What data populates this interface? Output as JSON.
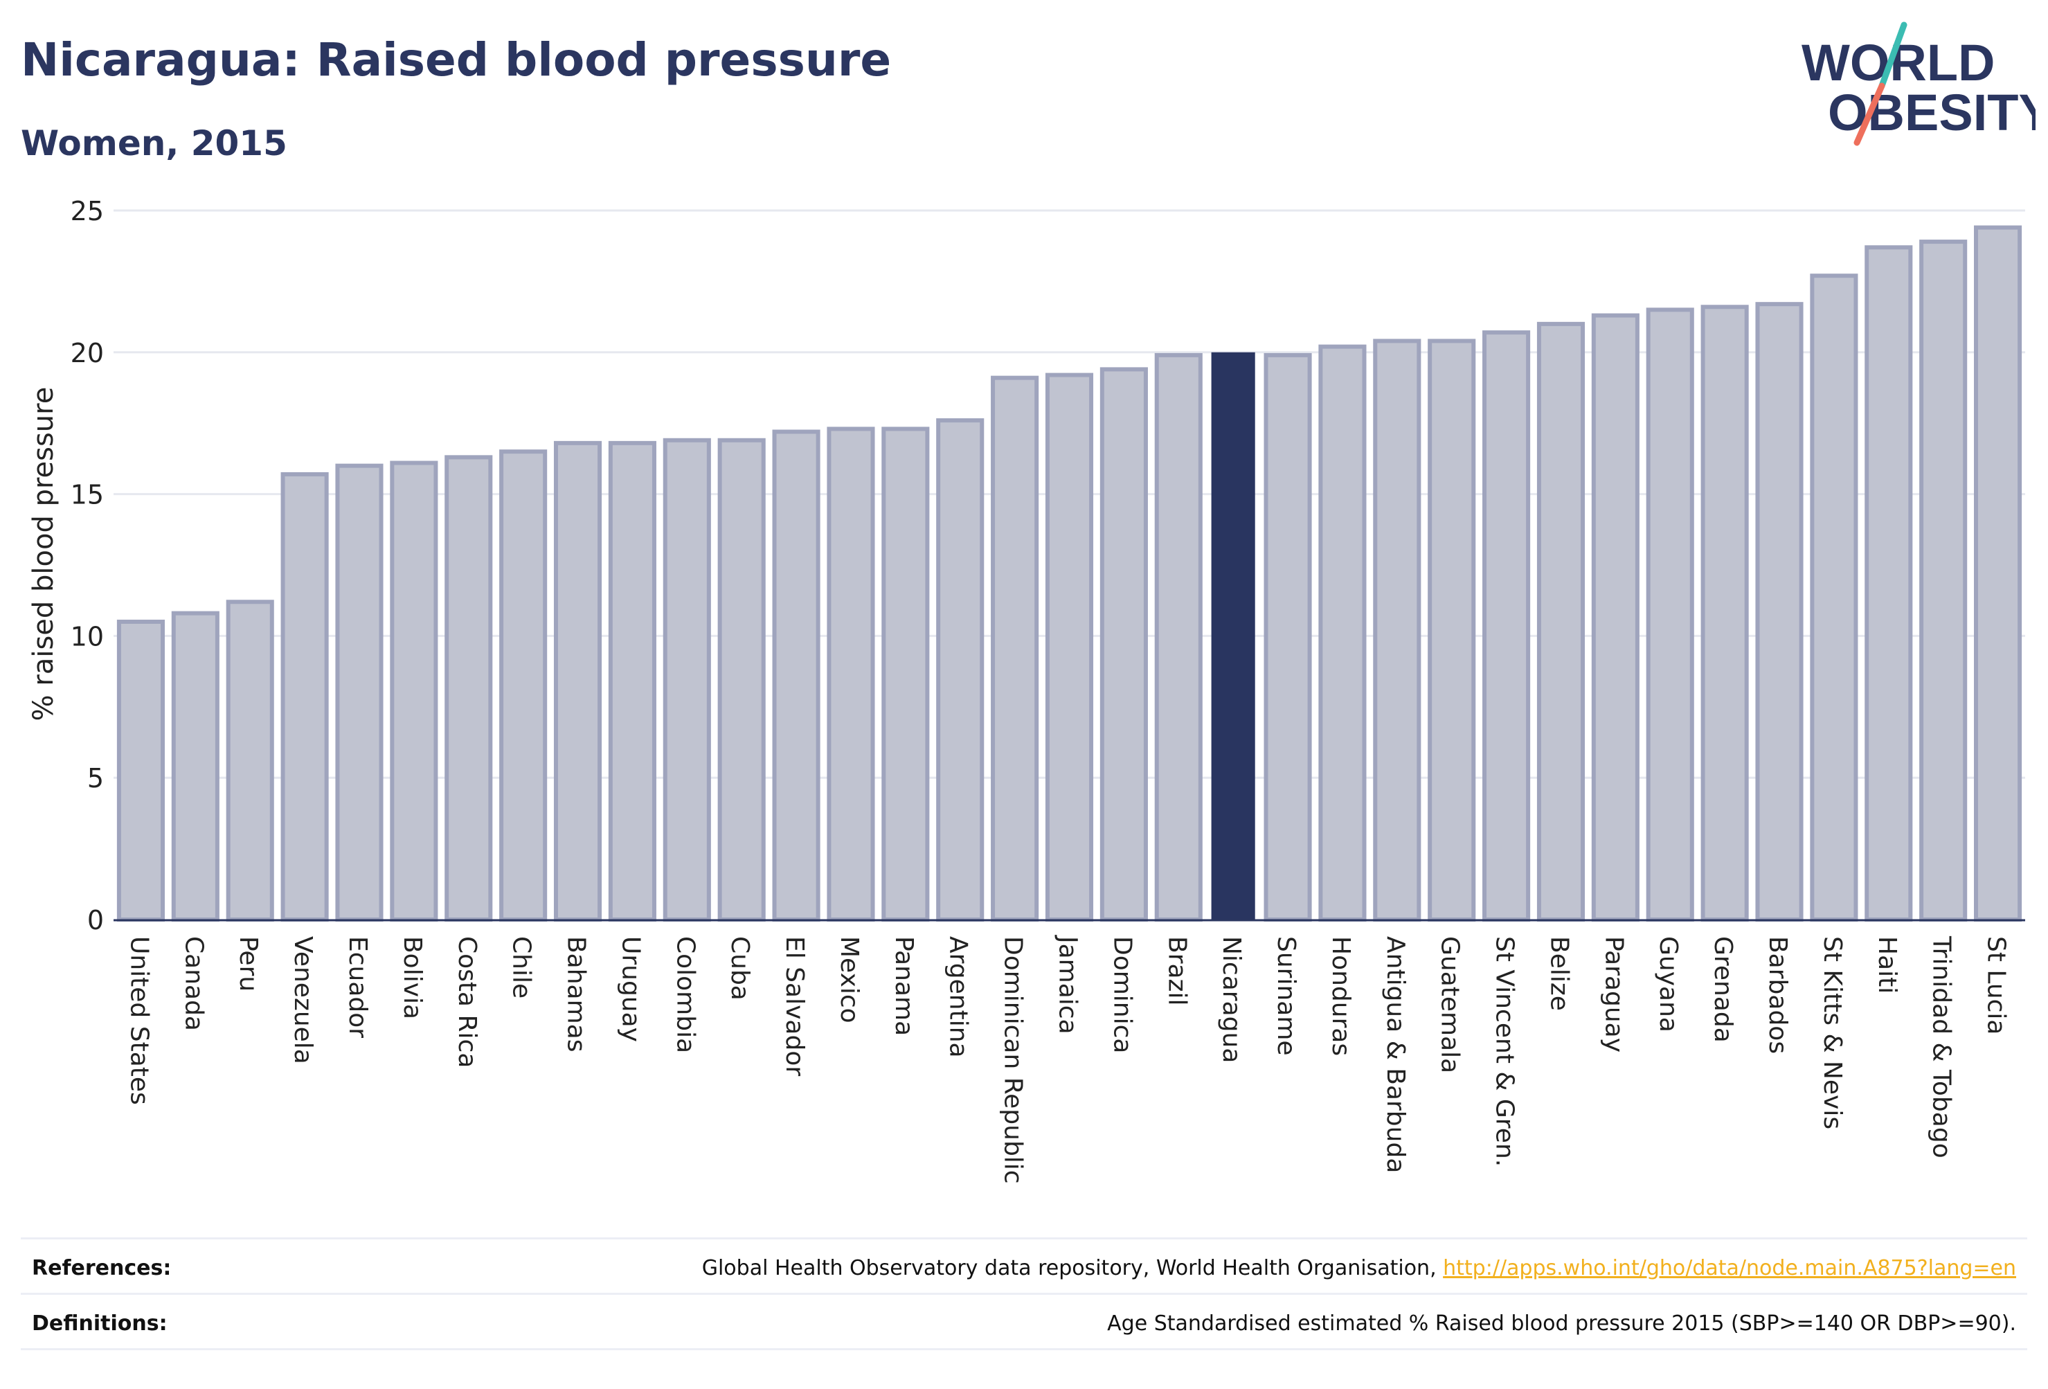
{
  "title": "Nicaragua: Raised blood pressure",
  "subtitle": "Women, 2015",
  "logo": {
    "line1": "WORLD",
    "line2": "OBESITY"
  },
  "colors": {
    "title": "#2b3660",
    "bar_fill": "#c0c3d0",
    "bar_stroke": "#9fa4bd",
    "highlight": "#293560",
    "grid": "#e6e8ef",
    "link": "#f2b01e",
    "logo_teal": "#3bbcb2",
    "logo_coral": "#ee6f5c"
  },
  "chart_data": {
    "type": "bar",
    "ylabel": "% raised blood pressure",
    "xlabel": "",
    "ylim": [
      0,
      25
    ],
    "yticks": [
      0,
      5,
      10,
      15,
      20,
      25
    ],
    "grid": true,
    "highlight": "Nicaragua",
    "categories": [
      "United States",
      "Canada",
      "Peru",
      "Venezuela",
      "Ecuador",
      "Bolivia",
      "Costa Rica",
      "Chile",
      "Bahamas",
      "Uruguay",
      "Colombia",
      "Cuba",
      "El Salvador",
      "Mexico",
      "Panama",
      "Argentina",
      "Dominican Republic",
      "Jamaica",
      "Dominica",
      "Brazil",
      "Nicaragua",
      "Suriname",
      "Honduras",
      "Antigua & Barbuda",
      "Guatemala",
      "St Vincent & Gren.",
      "Belize",
      "Paraguay",
      "Guyana",
      "Grenada",
      "Barbados",
      "St Kitts & Nevis",
      "Haiti",
      "Trinidad & Tobago",
      "St Lucia"
    ],
    "values": [
      10.5,
      10.8,
      11.2,
      15.7,
      16.0,
      16.1,
      16.3,
      16.5,
      16.8,
      16.8,
      16.9,
      16.9,
      17.2,
      17.3,
      17.3,
      17.6,
      19.1,
      19.2,
      19.4,
      19.9,
      20.0,
      19.9,
      20.2,
      20.4,
      20.4,
      20.7,
      21.0,
      21.3,
      21.5,
      21.6,
      21.7,
      22.7,
      23.7,
      23.9,
      24.4
    ]
  },
  "footer": {
    "references_label": "References:",
    "references_text": "Global Health Observatory data repository, World Health Organisation, ",
    "references_link": "http://apps.who.int/gho/data/node.main.A875?lang=en",
    "definitions_label": "Definitions:",
    "definitions_text": "Age Standardised estimated % Raised blood pressure 2015 (SBP>=140 OR DBP>=90)."
  }
}
